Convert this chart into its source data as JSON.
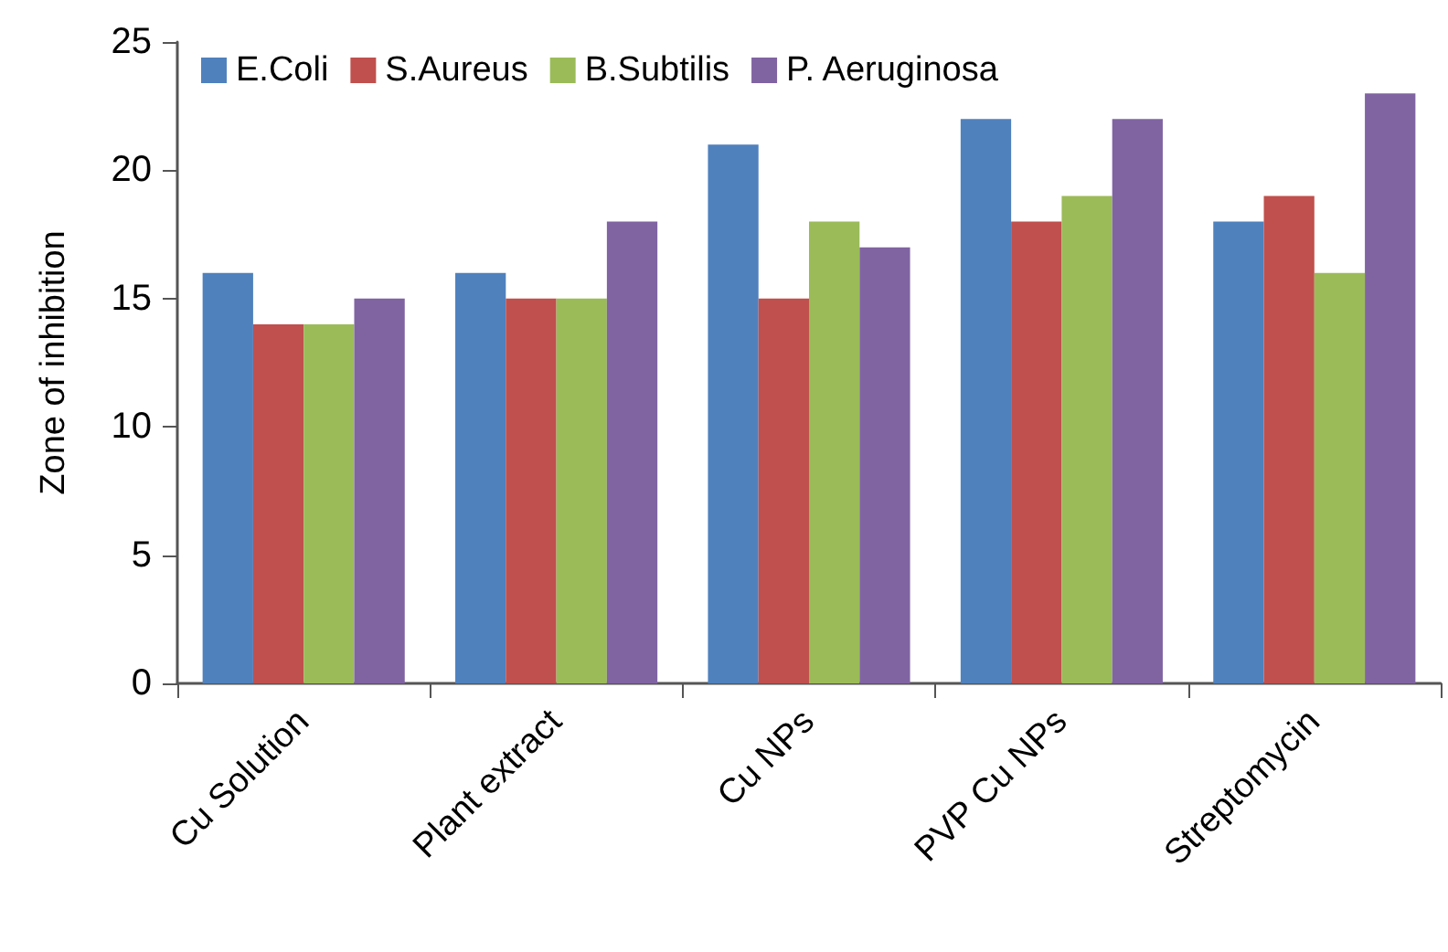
{
  "chart_data": {
    "type": "bar",
    "ylabel": "Zone of inhibition",
    "categories": [
      "Cu Solution",
      "Plant extract",
      "Cu NPs",
      "PVP Cu NPs",
      "Streptomycin"
    ],
    "series": [
      {
        "name": "E.Coli",
        "color": "#4f81bd",
        "values": [
          16,
          16,
          21,
          22,
          18
        ]
      },
      {
        "name": "S.Aureus",
        "color": "#c0504d",
        "values": [
          14,
          15,
          15,
          18,
          19
        ]
      },
      {
        "name": "B.Subtilis",
        "color": "#9bbb59",
        "values": [
          14,
          15,
          18,
          19,
          16
        ]
      },
      {
        "name": "P. Aeruginosa",
        "color": "#8064a2",
        "values": [
          15,
          18,
          17,
          22,
          23
        ]
      }
    ],
    "ylim": [
      0,
      25
    ],
    "yticks": [
      0,
      5,
      10,
      15,
      20,
      25
    ],
    "grid": false,
    "legend": "top left"
  }
}
